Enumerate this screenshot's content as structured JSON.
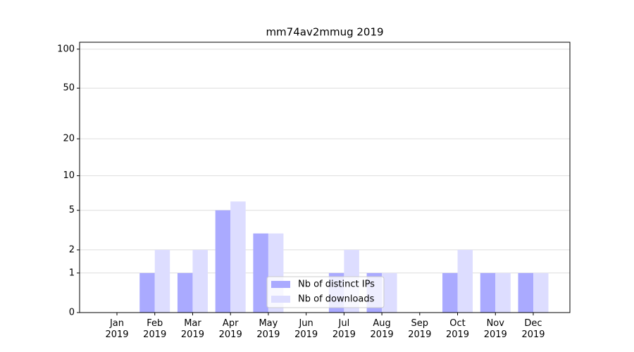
{
  "chart_data": {
    "type": "bar",
    "title": "mm74av2mmug 2019",
    "categories": [
      "Jan\n2019",
      "Feb\n2019",
      "Mar\n2019",
      "Apr\n2019",
      "May\n2019",
      "Jun\n2019",
      "Jul\n2019",
      "Aug\n2019",
      "Sep\n2019",
      "Oct\n2019",
      "Nov\n2019",
      "Dec\n2019"
    ],
    "series": [
      {
        "name": "Nb of distinct IPs",
        "color": "#aaaaff",
        "values": [
          0,
          1,
          1,
          5,
          3,
          0,
          1,
          1,
          0,
          1,
          1,
          1
        ]
      },
      {
        "name": "Nb of downloads",
        "color": "#ddddff",
        "values": [
          0,
          2,
          2,
          6,
          3,
          0,
          2,
          1,
          0,
          2,
          1,
          1
        ]
      }
    ],
    "yscale": "log1p",
    "ylim": [
      0,
      113
    ],
    "yticks": [
      0,
      1,
      2,
      5,
      10,
      20,
      50,
      100
    ],
    "grid": true,
    "legend": "lower center"
  }
}
